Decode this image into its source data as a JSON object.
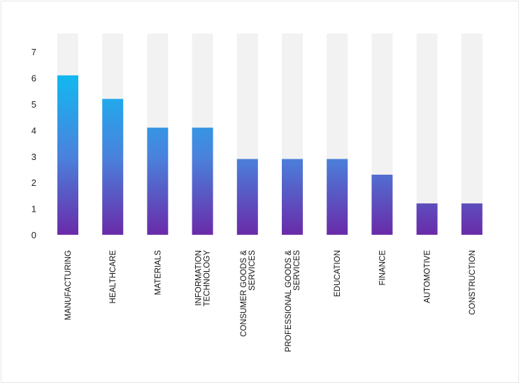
{
  "chart_data": {
    "type": "bar",
    "title": "",
    "xlabel": "",
    "ylabel": "",
    "categories": [
      [
        "MANUFACTURING"
      ],
      [
        "HEALTHCARE"
      ],
      [
        "MATERIALS"
      ],
      [
        "INFORMATION",
        "TECHNOLOGY"
      ],
      [
        "CONSUMER GOODS &",
        "SERVICES"
      ],
      [
        "PROFESSIONAL GOODS &",
        "SERVICES"
      ],
      [
        "EDUCATION"
      ],
      [
        "FINANCE"
      ],
      [
        "AUTOMOTIVE"
      ],
      [
        "CONSTRUCTION"
      ]
    ],
    "values": [
      6.1,
      5.2,
      4.1,
      4.1,
      2.9,
      2.9,
      2.9,
      2.3,
      1.2,
      1.2
    ],
    "ylim": [
      0,
      7.7
    ],
    "yticks": [
      "0",
      "1",
      "2",
      "3",
      "4",
      "5",
      "6",
      "7"
    ],
    "grid": false,
    "legend": "none",
    "colors": {
      "bar_top": "#14b6f0",
      "bar_mid": "#4a82dc",
      "bar_bottom": "#6a2aa8",
      "track": "#f2f2f2"
    }
  }
}
